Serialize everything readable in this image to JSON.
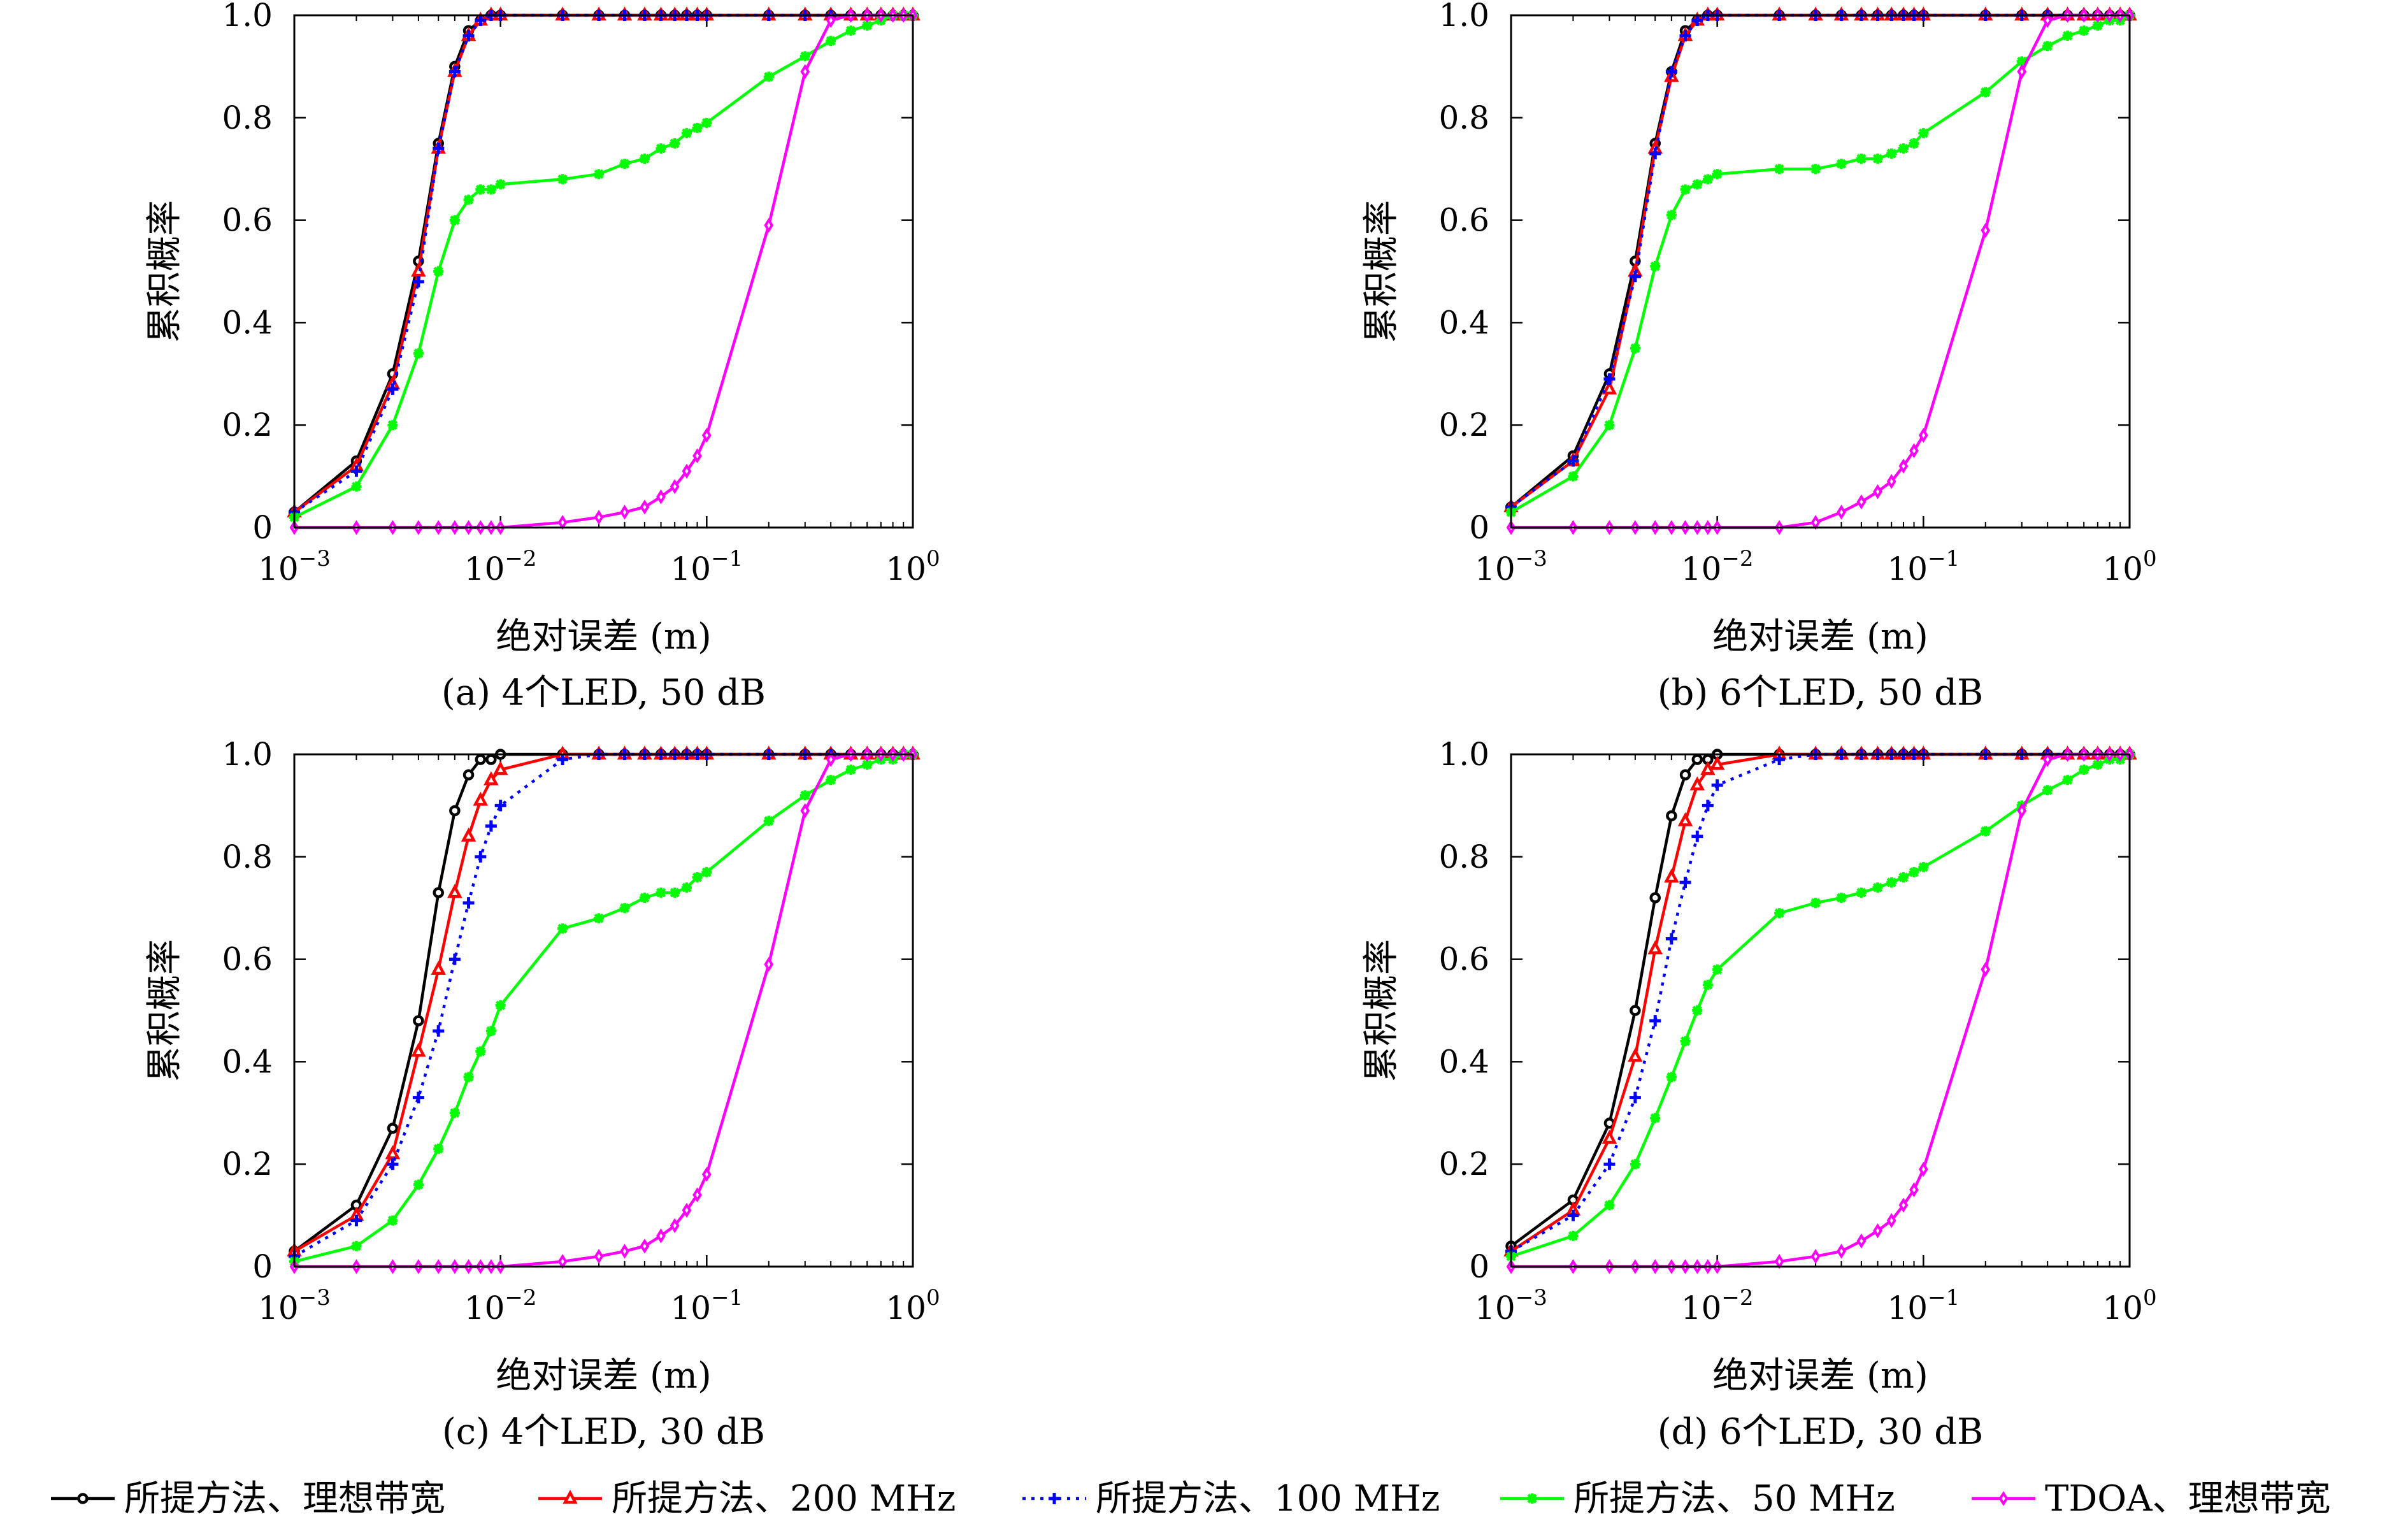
{
  "figure": {
    "legend": [
      {
        "label": "所提方法、理想带宽",
        "color": "#000000",
        "marker": "circle",
        "dash": "solid"
      },
      {
        "label": "所提方法、200 MHz",
        "color": "#ff0000",
        "marker": "triangle",
        "dash": "solid"
      },
      {
        "label": "所提方法、100 MHz",
        "color": "#0000ff",
        "marker": "plus",
        "dash": "dotted"
      },
      {
        "label": "所提方法、50 MHz",
        "color": "#00ff00",
        "marker": "star",
        "dash": "solid"
      },
      {
        "label": "TDOA、理想带宽",
        "color": "#ff00ff",
        "marker": "diamond",
        "dash": "solid"
      }
    ]
  },
  "chart_data": [
    {
      "type": "line",
      "caption": "(a) 4个LED, 50 dB",
      "xlabel": "绝对误差 (m)",
      "ylabel": "累积概率",
      "xscale": "log",
      "xlim": [
        0.001,
        1
      ],
      "ylim": [
        0,
        1
      ],
      "yticks": [
        "0",
        "0.2",
        "0.4",
        "0.6",
        "0.8",
        "1.0"
      ],
      "xticks": [
        {
          "base": "10",
          "exp": "−3"
        },
        {
          "base": "10",
          "exp": "−2"
        },
        {
          "base": "10",
          "exp": "−1"
        },
        {
          "base": "10",
          "exp": "0"
        }
      ],
      "x": [
        0.001,
        0.002,
        0.003,
        0.004,
        0.005,
        0.006,
        0.007,
        0.008,
        0.009,
        0.01,
        0.02,
        0.03,
        0.04,
        0.05,
        0.06,
        0.07,
        0.08,
        0.09,
        0.1,
        0.2,
        0.3,
        0.4,
        0.5,
        0.6,
        0.7,
        0.8,
        0.9,
        1.0
      ],
      "series": [
        {
          "name": "所提方法、理想带宽",
          "values": [
            0.03,
            0.13,
            0.3,
            0.52,
            0.75,
            0.9,
            0.97,
            0.99,
            1.0,
            1.0,
            1.0,
            1.0,
            1.0,
            1.0,
            1.0,
            1.0,
            1.0,
            1.0,
            1.0,
            1.0,
            1.0,
            1.0,
            1.0,
            1.0,
            1.0,
            1.0,
            1.0,
            1.0
          ]
        },
        {
          "name": "所提方法、200 MHz",
          "values": [
            0.03,
            0.12,
            0.28,
            0.5,
            0.74,
            0.89,
            0.96,
            0.99,
            1.0,
            1.0,
            1.0,
            1.0,
            1.0,
            1.0,
            1.0,
            1.0,
            1.0,
            1.0,
            1.0,
            1.0,
            1.0,
            1.0,
            1.0,
            1.0,
            1.0,
            1.0,
            1.0,
            1.0
          ]
        },
        {
          "name": "所提方法、100 MHz",
          "values": [
            0.03,
            0.11,
            0.27,
            0.48,
            0.74,
            0.89,
            0.96,
            0.99,
            1.0,
            1.0,
            1.0,
            1.0,
            1.0,
            1.0,
            1.0,
            1.0,
            1.0,
            1.0,
            1.0,
            1.0,
            1.0,
            1.0,
            1.0,
            1.0,
            1.0,
            1.0,
            1.0,
            1.0
          ]
        },
        {
          "name": "所提方法、50 MHz",
          "values": [
            0.02,
            0.08,
            0.2,
            0.34,
            0.5,
            0.6,
            0.64,
            0.66,
            0.66,
            0.67,
            0.68,
            0.69,
            0.71,
            0.72,
            0.74,
            0.75,
            0.77,
            0.78,
            0.79,
            0.88,
            0.92,
            0.95,
            0.97,
            0.98,
            0.99,
            1.0,
            1.0,
            1.0
          ]
        },
        {
          "name": "TDOA、理想带宽",
          "values": [
            0.0,
            0.0,
            0.0,
            0.0,
            0.0,
            0.0,
            0.0,
            0.0,
            0.0,
            0.0,
            0.01,
            0.02,
            0.03,
            0.04,
            0.06,
            0.08,
            0.11,
            0.14,
            0.18,
            0.59,
            0.89,
            0.99,
            1.0,
            1.0,
            1.0,
            1.0,
            1.0,
            1.0
          ]
        }
      ]
    },
    {
      "type": "line",
      "caption": "(b) 6个LED, 50 dB",
      "xlabel": "绝对误差 (m)",
      "ylabel": "累积概率",
      "xscale": "log",
      "xlim": [
        0.001,
        1
      ],
      "ylim": [
        0,
        1
      ],
      "yticks": [
        "0",
        "0.2",
        "0.4",
        "0.6",
        "0.8",
        "1.0"
      ],
      "xticks": [
        {
          "base": "10",
          "exp": "−3"
        },
        {
          "base": "10",
          "exp": "−2"
        },
        {
          "base": "10",
          "exp": "−1"
        },
        {
          "base": "10",
          "exp": "0"
        }
      ],
      "x": [
        0.001,
        0.002,
        0.003,
        0.004,
        0.005,
        0.006,
        0.007,
        0.008,
        0.009,
        0.01,
        0.02,
        0.03,
        0.04,
        0.05,
        0.06,
        0.07,
        0.08,
        0.09,
        0.1,
        0.2,
        0.3,
        0.4,
        0.5,
        0.6,
        0.7,
        0.8,
        0.9,
        1.0
      ],
      "series": [
        {
          "name": "所提方法、理想带宽",
          "values": [
            0.04,
            0.14,
            0.3,
            0.52,
            0.75,
            0.89,
            0.97,
            0.99,
            1.0,
            1.0,
            1.0,
            1.0,
            1.0,
            1.0,
            1.0,
            1.0,
            1.0,
            1.0,
            1.0,
            1.0,
            1.0,
            1.0,
            1.0,
            1.0,
            1.0,
            1.0,
            1.0,
            1.0
          ]
        },
        {
          "name": "所提方法、200 MHz",
          "values": [
            0.04,
            0.13,
            0.27,
            0.5,
            0.74,
            0.88,
            0.96,
            0.99,
            1.0,
            1.0,
            1.0,
            1.0,
            1.0,
            1.0,
            1.0,
            1.0,
            1.0,
            1.0,
            1.0,
            1.0,
            1.0,
            1.0,
            1.0,
            1.0,
            1.0,
            1.0,
            1.0,
            1.0
          ]
        },
        {
          "name": "所提方法、100 MHz",
          "values": [
            0.04,
            0.13,
            0.29,
            0.49,
            0.73,
            0.89,
            0.96,
            0.99,
            1.0,
            1.0,
            1.0,
            1.0,
            1.0,
            1.0,
            1.0,
            1.0,
            1.0,
            1.0,
            1.0,
            1.0,
            1.0,
            1.0,
            1.0,
            1.0,
            1.0,
            1.0,
            1.0,
            1.0
          ]
        },
        {
          "name": "所提方法、50 MHz",
          "values": [
            0.03,
            0.1,
            0.2,
            0.35,
            0.51,
            0.61,
            0.66,
            0.67,
            0.68,
            0.69,
            0.7,
            0.7,
            0.71,
            0.72,
            0.72,
            0.73,
            0.74,
            0.75,
            0.77,
            0.85,
            0.91,
            0.94,
            0.96,
            0.97,
            0.98,
            0.99,
            0.99,
            1.0
          ]
        },
        {
          "name": "TDOA、理想带宽",
          "values": [
            0.0,
            0.0,
            0.0,
            0.0,
            0.0,
            0.0,
            0.0,
            0.0,
            0.0,
            0.0,
            0.0,
            0.01,
            0.03,
            0.05,
            0.07,
            0.09,
            0.12,
            0.15,
            0.18,
            0.58,
            0.89,
            0.99,
            1.0,
            1.0,
            1.0,
            1.0,
            1.0,
            1.0
          ]
        }
      ]
    },
    {
      "type": "line",
      "caption": "(c) 4个LED, 30 dB",
      "xlabel": "绝对误差 (m)",
      "ylabel": "累积概率",
      "xscale": "log",
      "xlim": [
        0.001,
        1
      ],
      "ylim": [
        0,
        1
      ],
      "yticks": [
        "0",
        "0.2",
        "0.4",
        "0.6",
        "0.8",
        "1.0"
      ],
      "xticks": [
        {
          "base": "10",
          "exp": "−3"
        },
        {
          "base": "10",
          "exp": "−2"
        },
        {
          "base": "10",
          "exp": "−1"
        },
        {
          "base": "10",
          "exp": "0"
        }
      ],
      "x": [
        0.001,
        0.002,
        0.003,
        0.004,
        0.005,
        0.006,
        0.007,
        0.008,
        0.009,
        0.01,
        0.02,
        0.03,
        0.04,
        0.05,
        0.06,
        0.07,
        0.08,
        0.09,
        0.1,
        0.2,
        0.3,
        0.4,
        0.5,
        0.6,
        0.7,
        0.8,
        0.9,
        1.0
      ],
      "series": [
        {
          "name": "所提方法、理想带宽",
          "values": [
            0.03,
            0.12,
            0.27,
            0.48,
            0.73,
            0.89,
            0.96,
            0.99,
            0.99,
            1.0,
            1.0,
            1.0,
            1.0,
            1.0,
            1.0,
            1.0,
            1.0,
            1.0,
            1.0,
            1.0,
            1.0,
            1.0,
            1.0,
            1.0,
            1.0,
            1.0,
            1.0,
            1.0
          ]
        },
        {
          "name": "所提方法、200 MHz",
          "values": [
            0.03,
            0.1,
            0.22,
            0.42,
            0.58,
            0.73,
            0.84,
            0.91,
            0.95,
            0.97,
            1.0,
            1.0,
            1.0,
            1.0,
            1.0,
            1.0,
            1.0,
            1.0,
            1.0,
            1.0,
            1.0,
            1.0,
            1.0,
            1.0,
            1.0,
            1.0,
            1.0,
            1.0
          ]
        },
        {
          "name": "所提方法、100 MHz",
          "values": [
            0.02,
            0.09,
            0.2,
            0.33,
            0.46,
            0.6,
            0.71,
            0.8,
            0.86,
            0.9,
            0.99,
            1.0,
            1.0,
            1.0,
            1.0,
            1.0,
            1.0,
            1.0,
            1.0,
            1.0,
            1.0,
            1.0,
            1.0,
            1.0,
            1.0,
            1.0,
            1.0,
            1.0
          ]
        },
        {
          "name": "所提方法、50 MHz",
          "values": [
            0.01,
            0.04,
            0.09,
            0.16,
            0.23,
            0.3,
            0.37,
            0.42,
            0.46,
            0.51,
            0.66,
            0.68,
            0.7,
            0.72,
            0.73,
            0.73,
            0.74,
            0.76,
            0.77,
            0.87,
            0.92,
            0.95,
            0.97,
            0.98,
            0.99,
            0.99,
            1.0,
            1.0
          ]
        },
        {
          "name": "TDOA、理想带宽",
          "values": [
            0.0,
            0.0,
            0.0,
            0.0,
            0.0,
            0.0,
            0.0,
            0.0,
            0.0,
            0.0,
            0.01,
            0.02,
            0.03,
            0.04,
            0.06,
            0.08,
            0.11,
            0.14,
            0.18,
            0.59,
            0.89,
            0.99,
            1.0,
            1.0,
            1.0,
            1.0,
            1.0,
            1.0
          ]
        }
      ]
    },
    {
      "type": "line",
      "caption": "(d) 6个LED, 30 dB",
      "xlabel": "绝对误差 (m)",
      "ylabel": "累积概率",
      "xscale": "log",
      "xlim": [
        0.001,
        1
      ],
      "ylim": [
        0,
        1
      ],
      "yticks": [
        "0",
        "0.2",
        "0.4",
        "0.6",
        "0.8",
        "1.0"
      ],
      "xticks": [
        {
          "base": "10",
          "exp": "−3"
        },
        {
          "base": "10",
          "exp": "−2"
        },
        {
          "base": "10",
          "exp": "−1"
        },
        {
          "base": "10",
          "exp": "0"
        }
      ],
      "x": [
        0.001,
        0.002,
        0.003,
        0.004,
        0.005,
        0.006,
        0.007,
        0.008,
        0.009,
        0.01,
        0.02,
        0.03,
        0.04,
        0.05,
        0.06,
        0.07,
        0.08,
        0.09,
        0.1,
        0.2,
        0.3,
        0.4,
        0.5,
        0.6,
        0.7,
        0.8,
        0.9,
        1.0
      ],
      "series": [
        {
          "name": "所提方法、理想带宽",
          "values": [
            0.04,
            0.13,
            0.28,
            0.5,
            0.72,
            0.88,
            0.96,
            0.99,
            0.99,
            1.0,
            1.0,
            1.0,
            1.0,
            1.0,
            1.0,
            1.0,
            1.0,
            1.0,
            1.0,
            1.0,
            1.0,
            1.0,
            1.0,
            1.0,
            1.0,
            1.0,
            1.0,
            1.0
          ]
        },
        {
          "name": "所提方法、200 MHz",
          "values": [
            0.03,
            0.11,
            0.25,
            0.41,
            0.62,
            0.76,
            0.87,
            0.94,
            0.97,
            0.98,
            1.0,
            1.0,
            1.0,
            1.0,
            1.0,
            1.0,
            1.0,
            1.0,
            1.0,
            1.0,
            1.0,
            1.0,
            1.0,
            1.0,
            1.0,
            1.0,
            1.0,
            1.0
          ]
        },
        {
          "name": "所提方法、100 MHz",
          "values": [
            0.03,
            0.1,
            0.2,
            0.33,
            0.48,
            0.64,
            0.75,
            0.84,
            0.9,
            0.94,
            0.99,
            1.0,
            1.0,
            1.0,
            1.0,
            1.0,
            1.0,
            1.0,
            1.0,
            1.0,
            1.0,
            1.0,
            1.0,
            1.0,
            1.0,
            1.0,
            1.0,
            1.0
          ]
        },
        {
          "name": "所提方法、50 MHz",
          "values": [
            0.02,
            0.06,
            0.12,
            0.2,
            0.29,
            0.37,
            0.44,
            0.5,
            0.55,
            0.58,
            0.69,
            0.71,
            0.72,
            0.73,
            0.74,
            0.75,
            0.76,
            0.77,
            0.78,
            0.85,
            0.9,
            0.93,
            0.95,
            0.97,
            0.98,
            0.99,
            0.99,
            1.0
          ]
        },
        {
          "name": "TDOA、理想带宽",
          "values": [
            0.0,
            0.0,
            0.0,
            0.0,
            0.0,
            0.0,
            0.0,
            0.0,
            0.0,
            0.0,
            0.01,
            0.02,
            0.03,
            0.05,
            0.07,
            0.09,
            0.12,
            0.15,
            0.19,
            0.58,
            0.89,
            0.99,
            1.0,
            1.0,
            1.0,
            1.0,
            1.0,
            1.0
          ]
        }
      ]
    }
  ]
}
